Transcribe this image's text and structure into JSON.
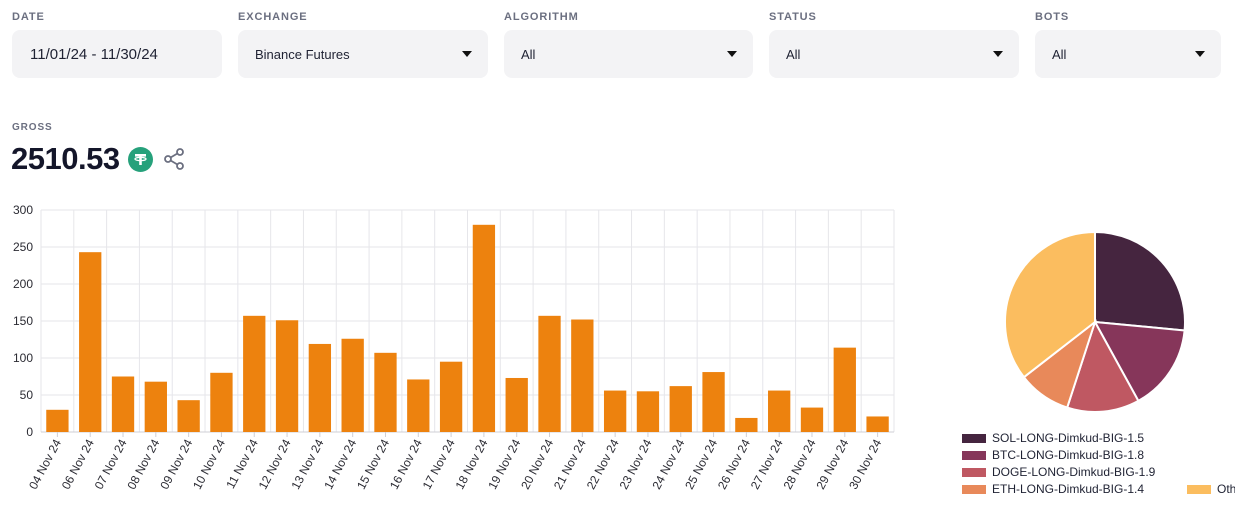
{
  "filters": {
    "date": {
      "label": "DATE",
      "value": "11/01/24 - 11/30/24"
    },
    "exchange": {
      "label": "EXCHANGE",
      "value": "Binance Futures"
    },
    "algorithm": {
      "label": "ALGORITHM",
      "value": "All"
    },
    "status": {
      "label": "STATUS",
      "value": "All"
    },
    "bots": {
      "label": "BOTS",
      "value": "All"
    }
  },
  "gross": {
    "label": "GROSS",
    "value": "2510.53",
    "icons": [
      "tether-icon",
      "share-icon"
    ]
  },
  "chart_data": [
    {
      "type": "bar",
      "categories": [
        "04 Nov 24",
        "06 Nov 24",
        "07 Nov 24",
        "08 Nov 24",
        "09 Nov 24",
        "10 Nov 24",
        "11 Nov 24",
        "12 Nov 24",
        "13 Nov 24",
        "14 Nov 24",
        "15 Nov 24",
        "16 Nov 24",
        "17 Nov 24",
        "18 Nov 24",
        "19 Nov 24",
        "20 Nov 24",
        "21 Nov 24",
        "22 Nov 24",
        "23 Nov 24",
        "24 Nov 24",
        "25 Nov 24",
        "26 Nov 24",
        "27 Nov 24",
        "28 Nov 24",
        "29 Nov 24",
        "30 Nov 24"
      ],
      "values": [
        30,
        243,
        75,
        68,
        43,
        80,
        157,
        151,
        119,
        126,
        107,
        71,
        95,
        280,
        73,
        157,
        152,
        56,
        55,
        62,
        81,
        19,
        56,
        33,
        114,
        21
      ],
      "ylim": [
        0,
        300
      ],
      "yticks": [
        0,
        50,
        100,
        150,
        200,
        250,
        300
      ],
      "color": "#ed820e",
      "grid": true
    },
    {
      "type": "pie",
      "categories": [
        "SOL-LONG-Dimkud-BIG-1.5",
        "BTC-LONG-Dimkud-BIG-1.8",
        "DOGE-LONG-Dimkud-BIG-1.9",
        "ETH-LONG-Dimkud-BIG-1.4",
        "Others"
      ],
      "values": [
        26.5,
        15.5,
        13.0,
        9.5,
        35.5
      ],
      "colors": [
        "#45253f",
        "#86365a",
        "#bf5862",
        "#e8895a",
        "#fbbd5f"
      ],
      "legend_position": "bottom"
    }
  ]
}
